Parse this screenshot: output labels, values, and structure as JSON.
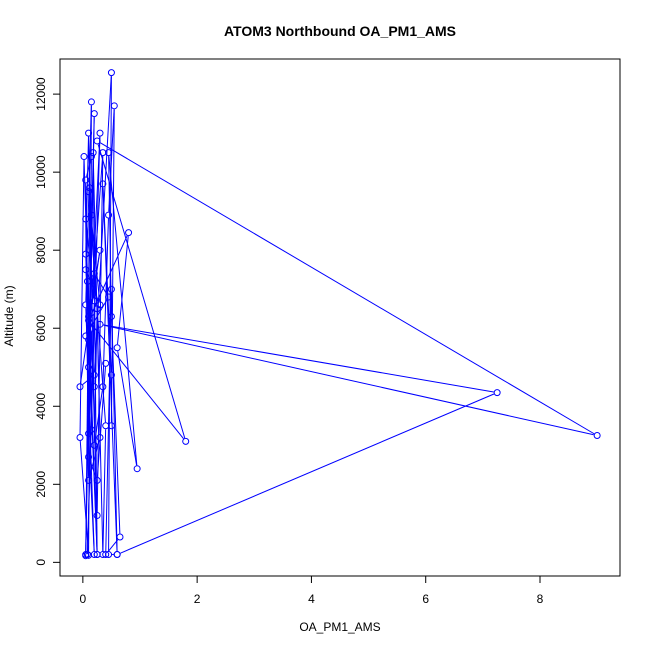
{
  "chart_data": {
    "type": "scatter",
    "title": "ATOM3 Northbound OA_PM1_AMS",
    "xlabel": "OA_PM1_AMS",
    "ylabel": "Altitude (m)",
    "xlim": [
      -0.4,
      9.4
    ],
    "ylim": [
      -350,
      12900
    ],
    "x_ticks": [
      0,
      2,
      4,
      6,
      8
    ],
    "y_ticks": [
      0,
      2000,
      4000,
      6000,
      8000,
      10000,
      12000
    ],
    "grid": false,
    "legend": "none",
    "color": "#0000ff",
    "series": [
      {
        "style": "points-and-lines",
        "points": [
          [
            0.05,
            200
          ],
          [
            0.1,
            5000
          ],
          [
            0.05,
            9800
          ],
          [
            0.15,
            10400
          ],
          [
            0.1,
            3300
          ],
          [
            0.2,
            200
          ],
          [
            0.05,
            6600
          ],
          [
            0.15,
            11800
          ],
          [
            0.1,
            180
          ],
          [
            -0.05,
            3200
          ],
          [
            0.02,
            10400
          ],
          [
            0.1,
            6300
          ],
          [
            0.2,
            4500
          ],
          [
            0.08,
            7200
          ],
          [
            0.25,
            200
          ],
          [
            0.1,
            11000
          ],
          [
            0.05,
            7900
          ],
          [
            0.15,
            3400
          ],
          [
            0.12,
            9600
          ],
          [
            0.05,
            170
          ],
          [
            0.2,
            11500
          ],
          [
            0.1,
            5700
          ],
          [
            0.25,
            200
          ],
          [
            0.18,
            10500
          ],
          [
            0.3,
            3200
          ],
          [
            0.1,
            2100
          ],
          [
            0.05,
            8800
          ],
          [
            0.2,
            6700
          ],
          [
            0.08,
            200
          ],
          [
            0.3,
            11000
          ],
          [
            0.15,
            6400
          ],
          [
            0.35,
            10500
          ],
          [
            0.25,
            1200
          ],
          [
            0.15,
            6000
          ],
          [
            0.05,
            7500
          ],
          [
            0.3,
            6600
          ],
          [
            0.1,
            9500
          ],
          [
            0.4,
            3500
          ],
          [
            0.35,
            200
          ],
          [
            0.25,
            6500
          ],
          [
            0.2,
            3000
          ],
          [
            0.35,
            4500
          ],
          [
            0.45,
            8900
          ],
          [
            0.55,
            11700
          ],
          [
            0.5,
            3500
          ],
          [
            0.5,
            4800
          ],
          [
            0.35,
            9700
          ],
          [
            0.6,
            200
          ],
          [
            0.5,
            7000
          ],
          [
            0.4,
            200
          ],
          [
            0.65,
            650
          ],
          [
            0.5,
            6300
          ],
          [
            0.45,
            10500
          ],
          [
            0.95,
            2400
          ],
          [
            0.6,
            5500
          ],
          [
            0.8,
            8450
          ],
          [
            0.1,
            6200
          ],
          [
            1.8,
            3100
          ],
          [
            0.25,
            10800
          ],
          [
            9.0,
            3250
          ],
          [
            0.3,
            6100
          ],
          [
            7.25,
            4350
          ],
          [
            0.6,
            200
          ],
          [
            0.45,
            200
          ],
          [
            0.5,
            12550
          ],
          [
            0.2,
            4800
          ],
          [
            -0.05,
            4500
          ],
          [
            0.3,
            8000
          ],
          [
            0.05,
            5800
          ],
          [
            0.45,
            6800
          ],
          [
            0.2,
            7400
          ],
          [
            0.15,
            8900
          ],
          [
            0.1,
            2700
          ],
          [
            0.25,
            2100
          ],
          [
            0.4,
            5100
          ]
        ]
      }
    ]
  }
}
